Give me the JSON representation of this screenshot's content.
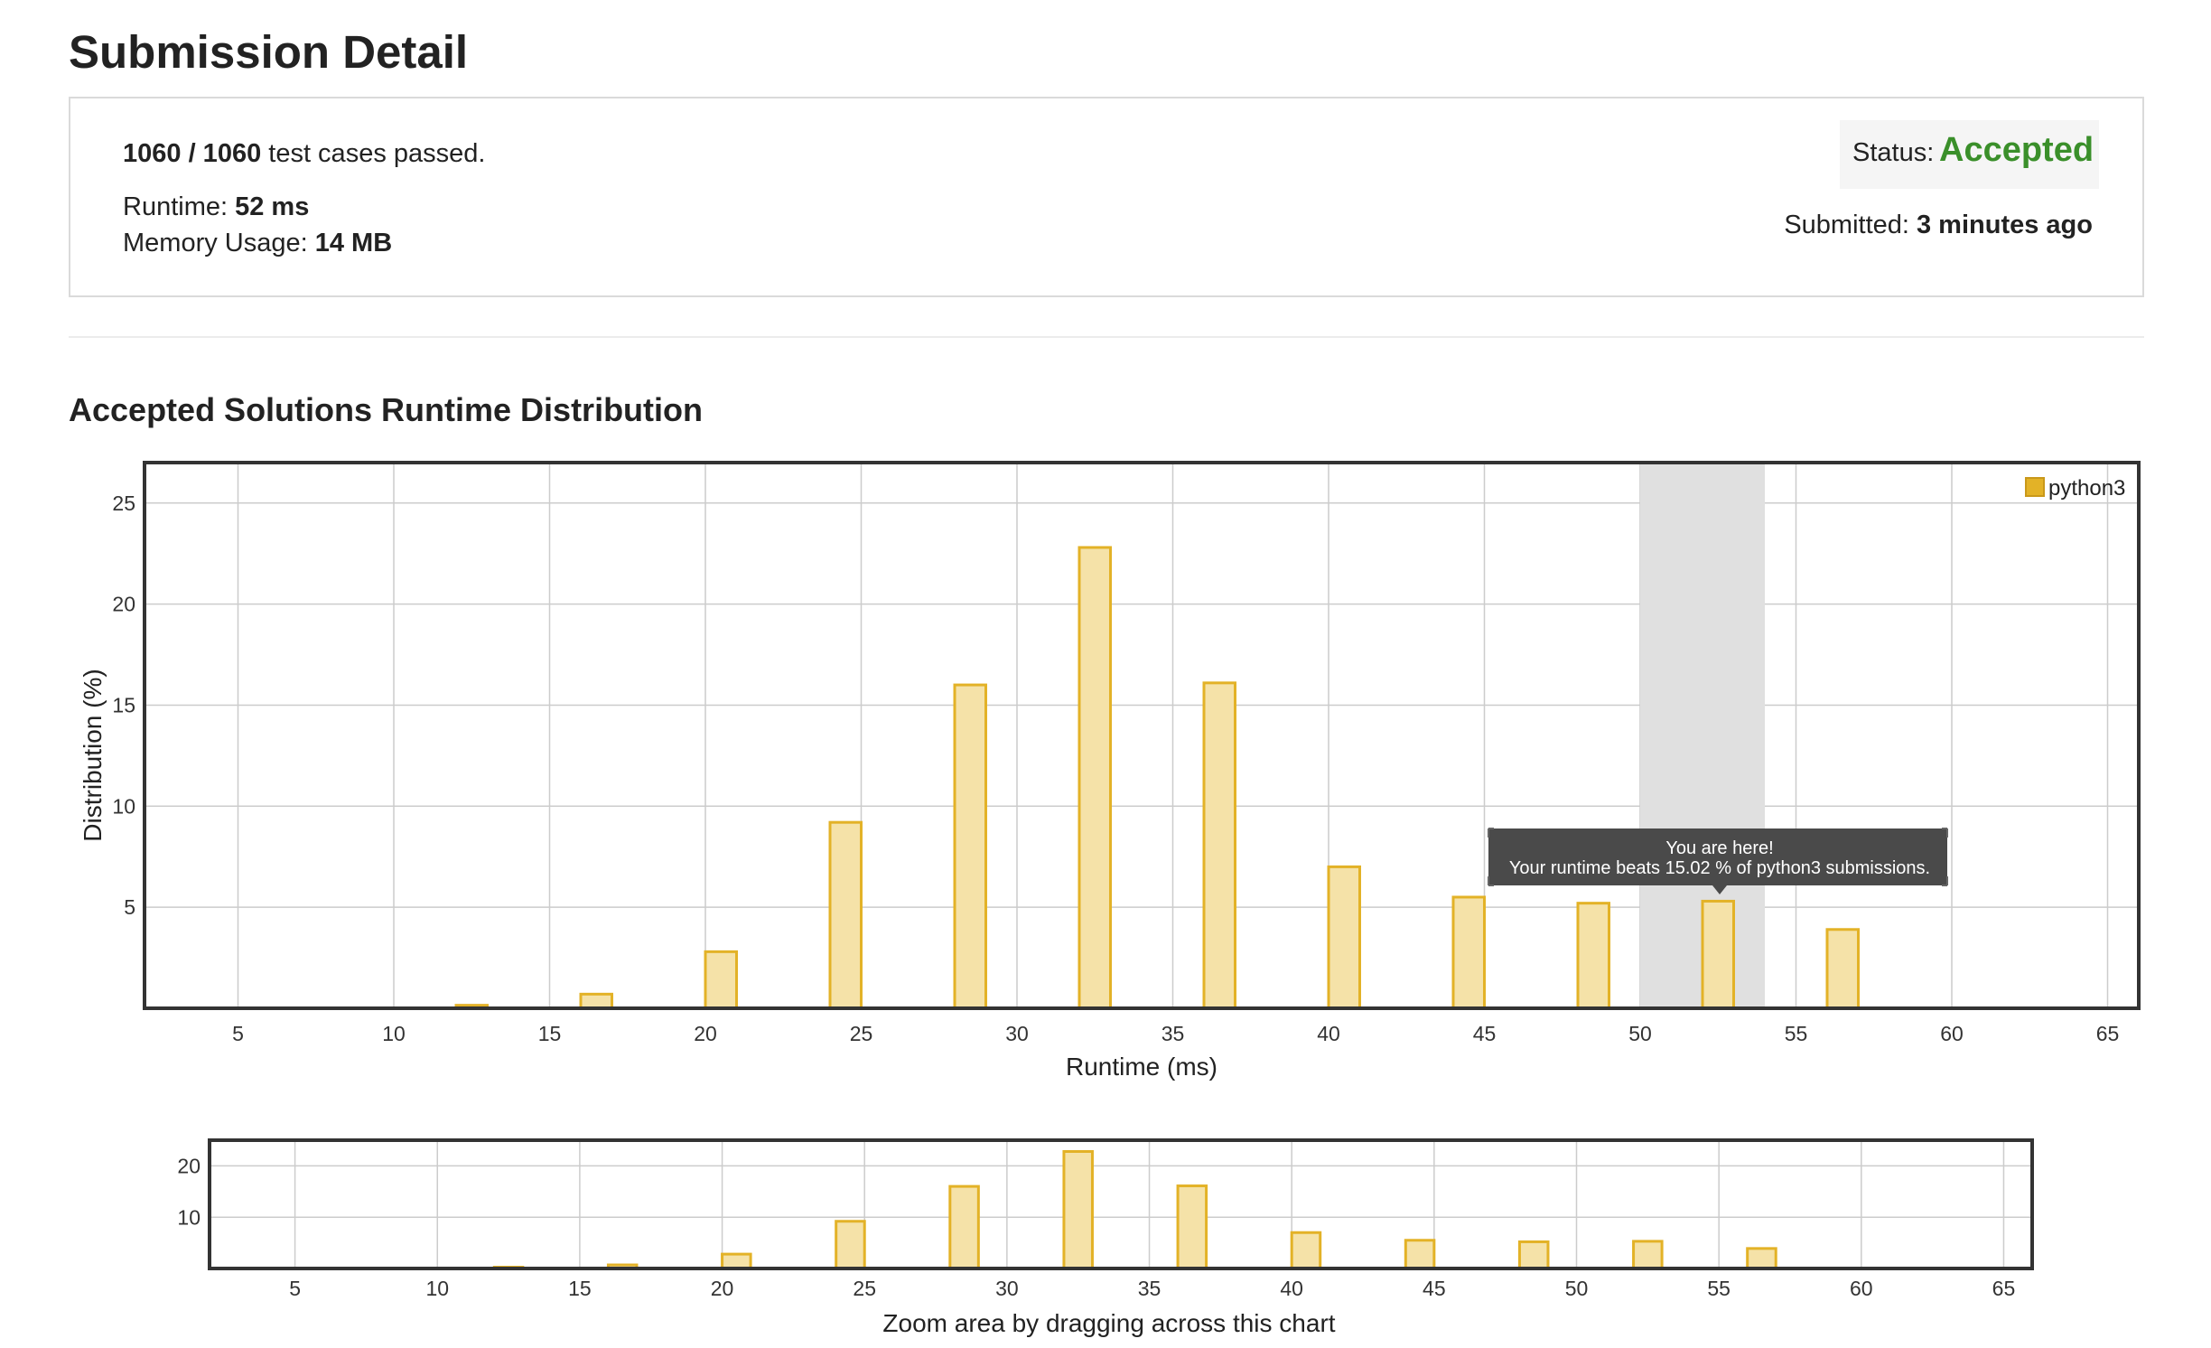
{
  "page": {
    "title": "Submission Detail",
    "section_title": "Accepted Solutions Runtime Distribution"
  },
  "summary": {
    "passed": "1060 / 1060",
    "passed_suffix": " test cases passed.",
    "runtime_label": "Runtime: ",
    "runtime_value": "52 ms",
    "memory_label": "Memory Usage: ",
    "memory_value": "14 MB",
    "status_label": "Status: ",
    "status_value": "Accepted",
    "submitted_label": "Submitted: ",
    "submitted_value": "3 minutes ago"
  },
  "colors": {
    "accepted": "#3a8f2a",
    "bar_fill": "#f5e2a8",
    "bar_stroke": "#e3b227",
    "highlight_band": "#e0e0e0",
    "tooltip_bg": "#4a4a4a"
  },
  "tooltip": {
    "line1": "You are here!",
    "line2": "Your runtime beats 15.02 % of python3 submissions."
  },
  "chart_data": [
    {
      "type": "bar",
      "ylabel": "Distribution (%)",
      "xlabel": "Runtime (ms)",
      "legend": {
        "entries": [
          "python3"
        ],
        "position": "top-right"
      },
      "series": [
        {
          "name": "python3",
          "x": [
            12.5,
            16.5,
            20.5,
            24.5,
            28.5,
            32.5,
            36.5,
            40.5,
            44.5,
            48.5,
            52.5,
            56.5
          ],
          "values": [
            0.15,
            0.7,
            2.8,
            9.2,
            16.0,
            22.8,
            16.1,
            7.0,
            5.5,
            5.2,
            5.3,
            3.9
          ]
        }
      ],
      "xlim": [
        2,
        66
      ],
      "ylim": [
        0,
        27
      ],
      "xticks": [
        5,
        10,
        15,
        20,
        25,
        30,
        35,
        40,
        45,
        50,
        55,
        60,
        65
      ],
      "yticks": [
        5,
        10,
        15,
        20,
        25
      ],
      "highlight_range": [
        50,
        54
      ],
      "grid": true
    },
    {
      "type": "bar",
      "xlabel": "Zoom area by dragging across this chart",
      "series": [
        {
          "name": "python3",
          "x": [
            12.5,
            16.5,
            20.5,
            24.5,
            28.5,
            32.5,
            36.5,
            40.5,
            44.5,
            48.5,
            52.5,
            56.5
          ],
          "values": [
            0.15,
            0.7,
            2.8,
            9.2,
            16.0,
            22.8,
            16.1,
            7.0,
            5.5,
            5.2,
            5.3,
            3.9
          ]
        }
      ],
      "xlim": [
        2,
        66
      ],
      "ylim": [
        0,
        25
      ],
      "xticks": [
        5,
        10,
        15,
        20,
        25,
        30,
        35,
        40,
        45,
        50,
        55,
        60,
        65
      ],
      "yticks": [
        10,
        20
      ],
      "grid": true
    }
  ]
}
